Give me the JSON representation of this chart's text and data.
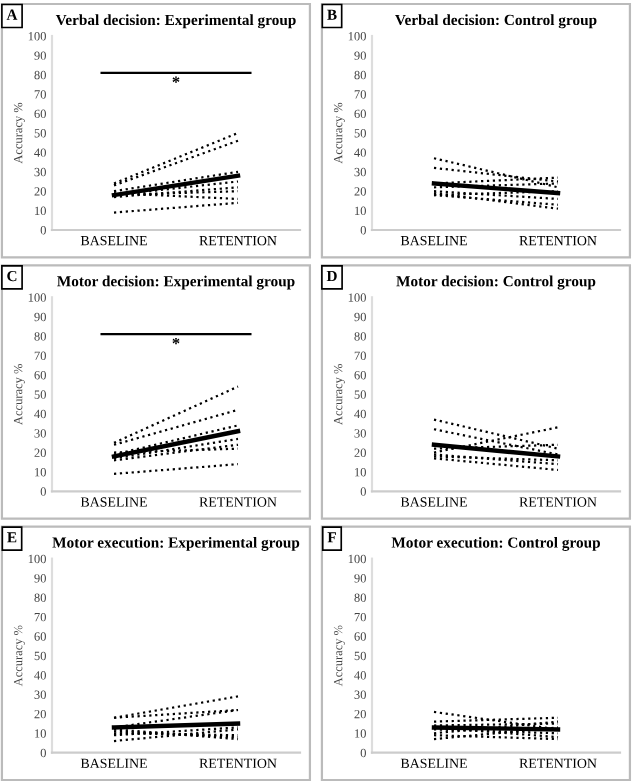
{
  "chart_data": [
    {
      "type": "line",
      "title": "Verbal decision: Experimental group",
      "ylabel": "Accuracy %",
      "categories": [
        "BASELINE",
        "RETENTION"
      ],
      "ylim": [
        0,
        100
      ],
      "yticks": [
        0,
        10,
        20,
        30,
        40,
        50,
        60,
        70,
        80,
        90,
        100
      ],
      "grid": false,
      "annotations": [
        "A",
        "*"
      ],
      "series": [
        {
          "color": "#000000",
          "line_style": "dotted",
          "values": [
            24,
            50
          ]
        },
        {
          "color": "#000000",
          "line_style": "dotted",
          "values": [
            23,
            46
          ]
        },
        {
          "color": "#000000",
          "line_style": "dotted",
          "values": [
            20,
            30
          ]
        },
        {
          "color": "#000000",
          "line_style": "dotted",
          "values": [
            18,
            25
          ]
        },
        {
          "color": "#000000",
          "line_style": "dotted",
          "values": [
            17,
            22
          ]
        },
        {
          "color": "#000000",
          "line_style": "dotted",
          "values": [
            18,
            20
          ]
        },
        {
          "color": "#000000",
          "line_style": "dotted",
          "values": [
            19,
            16
          ]
        },
        {
          "color": "#000000",
          "line_style": "dotted",
          "values": [
            9,
            14
          ]
        },
        {
          "color": "#000000",
          "line_style": "solid",
          "values": [
            18,
            28
          ]
        }
      ]
    },
    {
      "type": "line",
      "title": "Verbal decision: Control group",
      "ylabel": "Accuracy %",
      "categories": [
        "BASELINE",
        "RETENTION"
      ],
      "ylim": [
        0,
        100
      ],
      "yticks": [
        0,
        10,
        20,
        30,
        40,
        50,
        60,
        70,
        80,
        90,
        100
      ],
      "grid": false,
      "annotations": [
        "B"
      ],
      "series": [
        {
          "color": "#000000",
          "line_style": "dotted",
          "values": [
            37,
            22
          ]
        },
        {
          "color": "#000000",
          "line_style": "dotted",
          "values": [
            32,
            25
          ]
        },
        {
          "color": "#000000",
          "line_style": "dotted",
          "values": [
            24,
            27
          ]
        },
        {
          "color": "#000000",
          "line_style": "dotted",
          "values": [
            22,
            24
          ]
        },
        {
          "color": "#000000",
          "line_style": "dotted",
          "values": [
            20,
            16
          ]
        },
        {
          "color": "#000000",
          "line_style": "dotted",
          "values": [
            18,
            13
          ]
        },
        {
          "color": "#000000",
          "line_style": "dotted",
          "values": [
            19,
            11
          ]
        },
        {
          "color": "#000000",
          "line_style": "dotted",
          "values": [
            18,
            20
          ]
        },
        {
          "color": "#000000",
          "line_style": "solid",
          "values": [
            24,
            19
          ]
        }
      ]
    },
    {
      "type": "line",
      "title": "Motor decision: Experimental group",
      "ylabel": "Accuracy %",
      "categories": [
        "BASELINE",
        "RETENTION"
      ],
      "ylim": [
        0,
        100
      ],
      "yticks": [
        0,
        10,
        20,
        30,
        40,
        50,
        60,
        70,
        80,
        90,
        100
      ],
      "grid": false,
      "annotations": [
        "C",
        "*"
      ],
      "series": [
        {
          "color": "#000000",
          "line_style": "dotted",
          "values": [
            25,
            54
          ]
        },
        {
          "color": "#000000",
          "line_style": "dotted",
          "values": [
            24,
            42
          ]
        },
        {
          "color": "#000000",
          "line_style": "dotted",
          "values": [
            19,
            34
          ]
        },
        {
          "color": "#000000",
          "line_style": "dotted",
          "values": [
            17,
            27
          ]
        },
        {
          "color": "#000000",
          "line_style": "dotted",
          "values": [
            16,
            24
          ]
        },
        {
          "color": "#000000",
          "line_style": "dotted",
          "values": [
            20,
            22
          ]
        },
        {
          "color": "#000000",
          "line_style": "dotted",
          "values": [
            9,
            14
          ]
        },
        {
          "color": "#000000",
          "line_style": "solid",
          "values": [
            18,
            31
          ]
        }
      ]
    },
    {
      "type": "line",
      "title": "Motor decision: Control group",
      "ylabel": "Accuracy %",
      "categories": [
        "BASELINE",
        "RETENTION"
      ],
      "ylim": [
        0,
        100
      ],
      "yticks": [
        0,
        10,
        20,
        30,
        40,
        50,
        60,
        70,
        80,
        90,
        100
      ],
      "grid": false,
      "annotations": [
        "D"
      ],
      "series": [
        {
          "color": "#000000",
          "line_style": "dotted",
          "values": [
            37,
            22
          ]
        },
        {
          "color": "#000000",
          "line_style": "dotted",
          "values": [
            32,
            19
          ]
        },
        {
          "color": "#000000",
          "line_style": "dotted",
          "values": [
            20,
            33
          ]
        },
        {
          "color": "#000000",
          "line_style": "dotted",
          "values": [
            22,
            24
          ]
        },
        {
          "color": "#000000",
          "line_style": "dotted",
          "values": [
            19,
            14
          ]
        },
        {
          "color": "#000000",
          "line_style": "dotted",
          "values": [
            17,
            11
          ]
        },
        {
          "color": "#000000",
          "line_style": "dotted",
          "values": [
            18,
            16
          ]
        },
        {
          "color": "#000000",
          "line_style": "solid",
          "values": [
            24,
            18
          ]
        }
      ]
    },
    {
      "type": "line",
      "title": "Motor execution: Experimental group",
      "ylabel": "Accuracy %",
      "categories": [
        "BASELINE",
        "RETENTION"
      ],
      "ylim": [
        0,
        100
      ],
      "yticks": [
        0,
        10,
        20,
        30,
        40,
        50,
        60,
        70,
        80,
        90,
        100
      ],
      "grid": false,
      "annotations": [
        "E"
      ],
      "series": [
        {
          "color": "#000000",
          "line_style": "dotted",
          "values": [
            18,
            29
          ]
        },
        {
          "color": "#000000",
          "line_style": "dotted",
          "values": [
            18,
            22
          ]
        },
        {
          "color": "#000000",
          "line_style": "dotted",
          "values": [
            13,
            22
          ]
        },
        {
          "color": "#000000",
          "line_style": "dotted",
          "values": [
            6,
            12
          ]
        },
        {
          "color": "#000000",
          "line_style": "dotted",
          "values": [
            10,
            9
          ]
        },
        {
          "color": "#000000",
          "line_style": "dotted",
          "values": [
            12,
            7
          ]
        },
        {
          "color": "#000000",
          "line_style": "dotted",
          "values": [
            11,
            8
          ]
        },
        {
          "color": "#000000",
          "line_style": "dotted",
          "values": [
            9,
            13
          ]
        },
        {
          "color": "#000000",
          "line_style": "solid",
          "values": [
            13,
            15
          ]
        }
      ]
    },
    {
      "type": "line",
      "title": "Motor execution: Control group",
      "ylabel": "Accuracy %",
      "categories": [
        "BASELINE",
        "RETENTION"
      ],
      "ylim": [
        0,
        100
      ],
      "yticks": [
        0,
        10,
        20,
        30,
        40,
        50,
        60,
        70,
        80,
        90,
        100
      ],
      "grid": false,
      "annotations": [
        "F"
      ],
      "series": [
        {
          "color": "#000000",
          "line_style": "dotted",
          "values": [
            21,
            12
          ]
        },
        {
          "color": "#000000",
          "line_style": "dotted",
          "values": [
            16,
            18
          ]
        },
        {
          "color": "#000000",
          "line_style": "dotted",
          "values": [
            14,
            15
          ]
        },
        {
          "color": "#000000",
          "line_style": "dotted",
          "values": [
            10,
            16
          ]
        },
        {
          "color": "#000000",
          "line_style": "dotted",
          "values": [
            12,
            10
          ]
        },
        {
          "color": "#000000",
          "line_style": "dotted",
          "values": [
            9,
            7
          ]
        },
        {
          "color": "#000000",
          "line_style": "dotted",
          "values": [
            7,
            13
          ]
        },
        {
          "color": "#000000",
          "line_style": "dotted",
          "values": [
            13,
            8
          ]
        },
        {
          "color": "#000000",
          "line_style": "solid",
          "values": [
            13,
            12
          ]
        }
      ]
    }
  ]
}
